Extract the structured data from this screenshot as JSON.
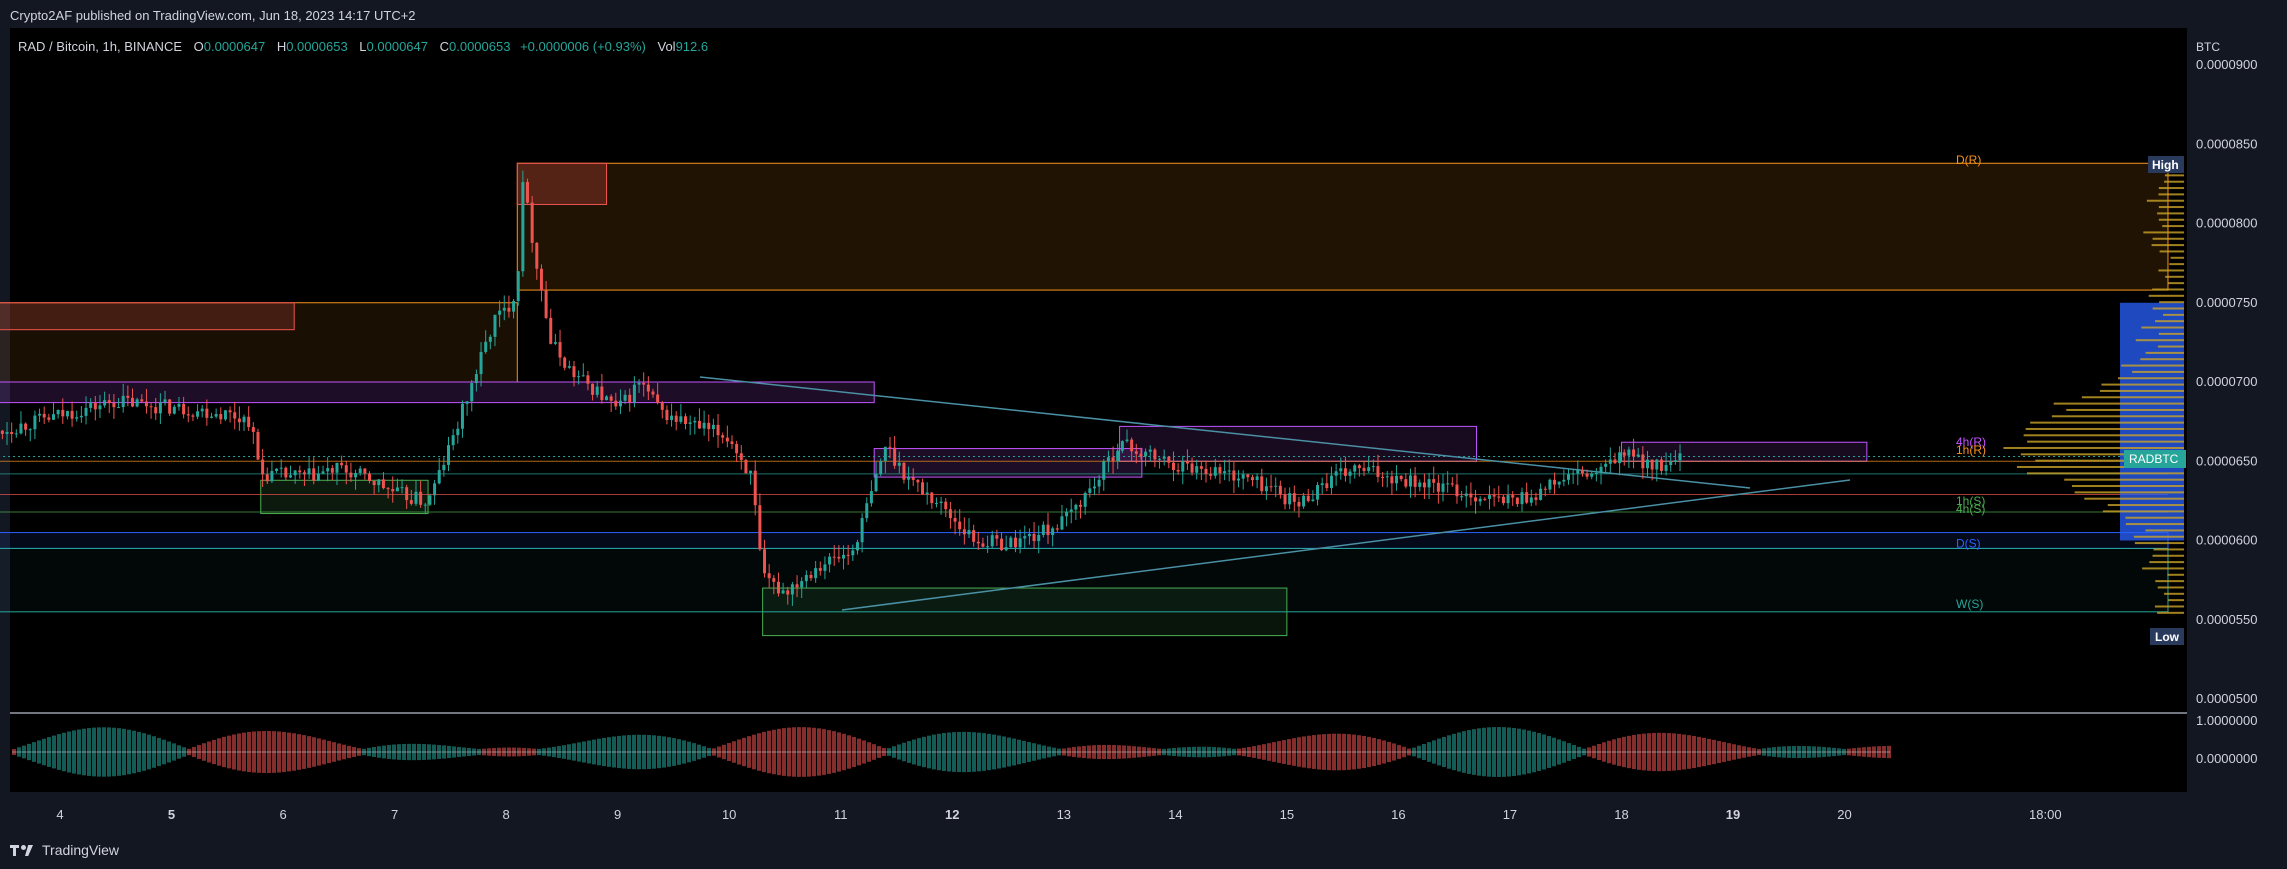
{
  "publish_line": "Crypto2AF published on TradingView.com, Jun 18, 2023 14:17 UTC+2",
  "legend": {
    "symbol": "RAD / Bitcoin, 1h, BINANCE",
    "o_label": "O",
    "o_value": "0.0000647",
    "h_label": "H",
    "h_value": "0.0000653",
    "l_label": "L",
    "l_value": "0.0000647",
    "c_label": "C",
    "c_value": "0.0000653",
    "change": "+0.0000006 (+0.93%)",
    "vol_label": "Vol",
    "vol_value": "912.6"
  },
  "footer": {
    "brand": "TradingView"
  },
  "colors": {
    "up": "#26a69a",
    "down": "#ef5350",
    "background": "#131722",
    "plot": "#000000"
  },
  "chart_data": {
    "type": "candlestick",
    "currency": "BTC",
    "ylim": [
      5e-05,
      9e-05
    ],
    "y_ticks": [
      "0.0000500",
      "0.0000550",
      "0.0000600",
      "0.0000650",
      "0.0000700",
      "0.0000750",
      "0.0000800",
      "0.0000850",
      "0.0000900"
    ],
    "x_ticks": [
      "4",
      "5",
      "6",
      "7",
      "8",
      "9",
      "10",
      "11",
      "12",
      "13",
      "14",
      "15",
      "16",
      "17",
      "18",
      "19",
      "20",
      "18:00"
    ],
    "price_tag": "RADBTC",
    "high_tag": "High",
    "low_tag": "Low",
    "last_price": 6.53e-05,
    "high_price": 8.38e-05,
    "low_price": 5.55e-05,
    "level_labels": [
      {
        "text": "D(R)",
        "price": 8.4e-05,
        "color": "#f7931a"
      },
      {
        "text": "4h(R)",
        "price": 6.62e-05,
        "color": "#c354ff"
      },
      {
        "text": "1h(R)",
        "price": 6.57e-05,
        "color": "#f7931a"
      },
      {
        "text": "1h(S)",
        "price": 6.25e-05,
        "color": "#4caf50"
      },
      {
        "text": "4h(S)",
        "price": 6.2e-05,
        "color": "#4caf50"
      },
      {
        "text": "D(S)",
        "price": 5.98e-05,
        "color": "#2962ff"
      },
      {
        "text": "W(S)",
        "price": 5.6e-05,
        "color": "#26a69a"
      }
    ],
    "oscillator_ticks": [
      "1.0000000",
      "0.0000000"
    ],
    "close_path": [
      [
        4.0,
        6.79e-05
      ],
      [
        4.5,
        6.88e-05
      ],
      [
        5.0,
        6.84e-05
      ],
      [
        5.5,
        6.8e-05
      ],
      [
        5.7,
        6.76e-05
      ],
      [
        5.8,
        6.42e-05
      ],
      [
        6.2,
        6.4e-05
      ],
      [
        6.5,
        6.45e-05
      ],
      [
        6.8,
        6.38e-05
      ],
      [
        7.0,
        6.3e-05
      ],
      [
        7.3,
        6.24e-05
      ],
      [
        7.5,
        6.6e-05
      ],
      [
        7.7,
        7e-05
      ],
      [
        7.9,
        7.4e-05
      ],
      [
        8.0,
        7.45e-05
      ],
      [
        8.1,
        7.6e-05
      ],
      [
        8.15,
        8.3e-05
      ],
      [
        8.2,
        8.05e-05
      ],
      [
        8.4,
        7.25e-05
      ],
      [
        8.6,
        7.05e-05
      ],
      [
        8.8,
        6.95e-05
      ],
      [
        9.0,
        6.82e-05
      ],
      [
        9.2,
        7e-05
      ],
      [
        9.4,
        6.8e-05
      ],
      [
        9.7,
        6.72e-05
      ],
      [
        10.0,
        6.65e-05
      ],
      [
        10.2,
        6.4e-05
      ],
      [
        10.3,
        5.75e-05
      ],
      [
        10.5,
        5.68e-05
      ],
      [
        10.8,
        5.85e-05
      ],
      [
        11.1,
        5.92e-05
      ],
      [
        11.3,
        6.35e-05
      ],
      [
        11.4,
        6.6e-05
      ],
      [
        11.6,
        6.4e-05
      ],
      [
        11.9,
        6.22e-05
      ],
      [
        12.2,
        6e-05
      ],
      [
        12.5,
        5.98e-05
      ],
      [
        12.8,
        6.05e-05
      ],
      [
        13.0,
        6.12e-05
      ],
      [
        13.3,
        6.38e-05
      ],
      [
        13.5,
        6.62e-05
      ],
      [
        13.7,
        6.55e-05
      ],
      [
        14.0,
        6.48e-05
      ],
      [
        14.3,
        6.45e-05
      ],
      [
        14.6,
        6.4e-05
      ],
      [
        14.9,
        6.32e-05
      ],
      [
        15.1,
        6.22e-05
      ],
      [
        15.3,
        6.35e-05
      ],
      [
        15.6,
        6.45e-05
      ],
      [
        16.0,
        6.4e-05
      ],
      [
        16.3,
        6.35e-05
      ],
      [
        16.6,
        6.3e-05
      ],
      [
        16.9,
        6.25e-05
      ],
      [
        17.2,
        6.28e-05
      ],
      [
        17.5,
        6.4e-05
      ],
      [
        17.8,
        6.42e-05
      ],
      [
        18.0,
        6.55e-05
      ],
      [
        18.2,
        6.5e-05
      ],
      [
        18.4,
        6.45e-05
      ],
      [
        18.55,
        6.53e-05
      ]
    ]
  }
}
